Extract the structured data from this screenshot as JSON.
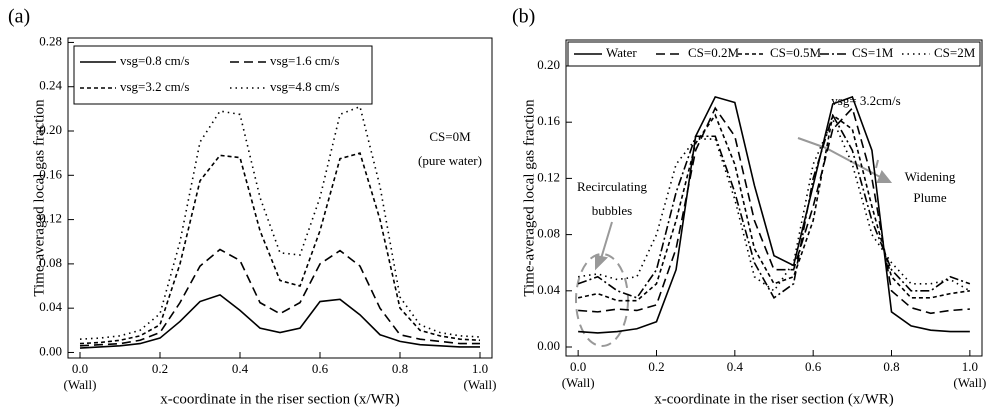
{
  "chart_data": [
    {
      "type": "line",
      "panel": "(a)",
      "y_label": "Time-averaged local gas fraction",
      "x_label": "x-coordinate in the riser section (x/WR)",
      "x_end_labels": [
        "(Wall)",
        "(Wall)"
      ],
      "annotations": [
        "CS=0M",
        "(pure water)"
      ],
      "x": [
        0,
        0.05,
        0.1,
        0.15,
        0.2,
        0.25,
        0.3,
        0.35,
        0.4,
        0.45,
        0.5,
        0.55,
        0.6,
        0.65,
        0.7,
        0.75,
        0.8,
        0.85,
        0.9,
        0.95,
        1.0
      ],
      "series": [
        {
          "name": "vsg=0.8 cm/s",
          "color": "#000000",
          "linestyle": "solid",
          "values": [
            0.004,
            0.005,
            0.006,
            0.008,
            0.013,
            0.028,
            0.046,
            0.052,
            0.038,
            0.022,
            0.018,
            0.022,
            0.046,
            0.048,
            0.034,
            0.016,
            0.01,
            0.007,
            0.006,
            0.005,
            0.005
          ]
        },
        {
          "name": "vsg=1.6 cm/s",
          "color": "#000000",
          "linestyle": "dashed",
          "values": [
            0.006,
            0.007,
            0.008,
            0.011,
            0.018,
            0.045,
            0.078,
            0.093,
            0.083,
            0.045,
            0.035,
            0.045,
            0.08,
            0.092,
            0.078,
            0.04,
            0.016,
            0.012,
            0.01,
            0.008,
            0.008
          ]
        },
        {
          "name": "vsg=3.2 cm/s",
          "color": "#000000",
          "linestyle": "short-dashed",
          "values": [
            0.008,
            0.009,
            0.011,
            0.015,
            0.025,
            0.08,
            0.155,
            0.178,
            0.176,
            0.11,
            0.065,
            0.06,
            0.11,
            0.175,
            0.18,
            0.12,
            0.04,
            0.02,
            0.015,
            0.012,
            0.011
          ]
        },
        {
          "name": "vsg=4.8 cm/s",
          "color": "#000000",
          "linestyle": "dotted",
          "values": [
            0.012,
            0.013,
            0.015,
            0.02,
            0.035,
            0.1,
            0.19,
            0.218,
            0.215,
            0.14,
            0.09,
            0.088,
            0.14,
            0.215,
            0.222,
            0.15,
            0.05,
            0.025,
            0.018,
            0.015,
            0.014
          ]
        }
      ],
      "xlim": [
        -0.03,
        1.03
      ],
      "xticks": [
        {
          "value": 0,
          "label": "0.0"
        },
        {
          "value": 0.2,
          "label": "0.2"
        },
        {
          "value": 0.4,
          "label": "0.4"
        },
        {
          "value": 0.6,
          "label": "0.6"
        },
        {
          "value": 0.8,
          "label": "0.8"
        },
        {
          "value": 1,
          "label": "1.0"
        }
      ],
      "ylim": [
        -0.005,
        0.284
      ],
      "yticks": [
        {
          "value": 0,
          "label": "0.00"
        },
        {
          "value": 0.04,
          "label": "0.04"
        },
        {
          "value": 0.08,
          "label": "0.08"
        },
        {
          "value": 0.12,
          "label": "0.12"
        },
        {
          "value": 0.16,
          "label": "0.16"
        },
        {
          "value": 0.2,
          "label": "0.20"
        },
        {
          "value": 0.24,
          "label": "0.24"
        },
        {
          "value": 0.28,
          "label": "0.28"
        }
      ]
    },
    {
      "type": "line",
      "panel": "(b)",
      "y_label": "Time-averaged local gas fraction",
      "x_label": "x-coordinate in the riser section  (x/WR)",
      "x_end_labels": [
        "(Wall)",
        "(Wall)"
      ],
      "annotations": [
        "vsg= 3.2cm/s",
        "Recirculating",
        "bubbles",
        "Widening",
        "Plume"
      ],
      "x": [
        0,
        0.05,
        0.1,
        0.15,
        0.2,
        0.25,
        0.3,
        0.35,
        0.4,
        0.45,
        0.5,
        0.55,
        0.6,
        0.65,
        0.7,
        0.75,
        0.8,
        0.85,
        0.9,
        0.95,
        1.0
      ],
      "series": [
        {
          "name": "Water",
          "color": "#000000",
          "linestyle": "solid",
          "values": [
            0.011,
            0.01,
            0.011,
            0.013,
            0.018,
            0.055,
            0.15,
            0.178,
            0.174,
            0.115,
            0.065,
            0.058,
            0.115,
            0.173,
            0.178,
            0.14,
            0.025,
            0.015,
            0.012,
            0.011,
            0.011
          ]
        },
        {
          "name": "CS=0.2M",
          "color": "#000000",
          "linestyle": "dashed",
          "values": [
            0.026,
            0.025,
            0.027,
            0.026,
            0.03,
            0.07,
            0.14,
            0.17,
            0.15,
            0.09,
            0.055,
            0.055,
            0.1,
            0.155,
            0.17,
            0.12,
            0.04,
            0.028,
            0.024,
            0.026,
            0.027
          ]
        },
        {
          "name": "CS=0.5M",
          "color": "#000000",
          "linestyle": "short-dashed",
          "values": [
            0.035,
            0.038,
            0.033,
            0.033,
            0.045,
            0.09,
            0.145,
            0.165,
            0.13,
            0.07,
            0.045,
            0.05,
            0.09,
            0.165,
            0.155,
            0.1,
            0.05,
            0.035,
            0.035,
            0.038,
            0.04
          ]
        },
        {
          "name": "CS=1M",
          "color": "#000000",
          "linestyle": "dash-dot",
          "values": [
            0.045,
            0.05,
            0.04,
            0.035,
            0.055,
            0.11,
            0.15,
            0.15,
            0.11,
            0.06,
            0.035,
            0.045,
            0.12,
            0.165,
            0.14,
            0.09,
            0.055,
            0.04,
            0.04,
            0.05,
            0.045
          ]
        },
        {
          "name": "CS=2M",
          "color": "#000000",
          "linestyle": "dotted",
          "values": [
            0.05,
            0.052,
            0.048,
            0.05,
            0.08,
            0.13,
            0.148,
            0.148,
            0.105,
            0.05,
            0.04,
            0.06,
            0.13,
            0.162,
            0.13,
            0.08,
            0.06,
            0.045,
            0.045,
            0.048,
            0.04
          ]
        }
      ],
      "xlim": [
        -0.031,
        1.031
      ],
      "xticks": [
        {
          "value": 0,
          "label": "0.0"
        },
        {
          "value": 0.2,
          "label": "0.2"
        },
        {
          "value": 0.4,
          "label": "0.4"
        },
        {
          "value": 0.6,
          "label": "0.6"
        },
        {
          "value": 0.8,
          "label": "0.8"
        },
        {
          "value": 1,
          "label": "1.0"
        }
      ],
      "ylim": [
        -0.0064,
        0.2185
      ],
      "yticks": [
        {
          "value": 0,
          "label": "0.00"
        },
        {
          "value": 0.04,
          "label": "0.04"
        },
        {
          "value": 0.08,
          "label": "0.08"
        },
        {
          "value": 0.12,
          "label": "0.12"
        },
        {
          "value": 0.16,
          "label": "0.16"
        },
        {
          "value": 0.2,
          "label": "0.20"
        }
      ]
    }
  ]
}
